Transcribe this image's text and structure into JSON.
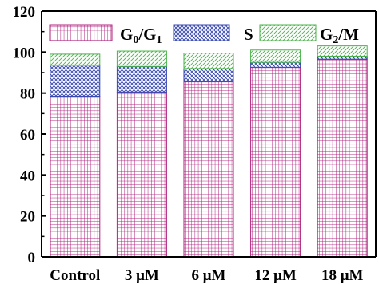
{
  "chart_data": {
    "type": "bar",
    "stacked": true,
    "categories": [
      "Control",
      "3 μM",
      "6 μM",
      "12 μM",
      "18 μM"
    ],
    "series": [
      {
        "name": "G0/G1",
        "legend_main": "G",
        "legend_sub1": "0",
        "legend_mid": "/G",
        "legend_sub2": "1",
        "color": "#b0207f",
        "pattern": "grid",
        "values": [
          78.5,
          80.5,
          85.5,
          92.5,
          96.5
        ]
      },
      {
        "name": "S",
        "legend_main": "S",
        "color": "#3646b0",
        "pattern": "crosshatch",
        "values": [
          15,
          12.5,
          6.5,
          2.5,
          1.5
        ]
      },
      {
        "name": "G2/M",
        "legend_main": "G",
        "legend_sub1": "2",
        "legend_mid": "/M",
        "color": "#47b547",
        "pattern": "diagonal",
        "values": [
          5.5,
          7.5,
          7.5,
          6,
          5
        ]
      }
    ],
    "yticks": [
      "0",
      "20",
      "40",
      "60",
      "80",
      "100",
      "120"
    ],
    "ylim": [
      0,
      120
    ],
    "xlabel": "",
    "ylabel": "",
    "title": "",
    "legend_position": "top, inside"
  }
}
